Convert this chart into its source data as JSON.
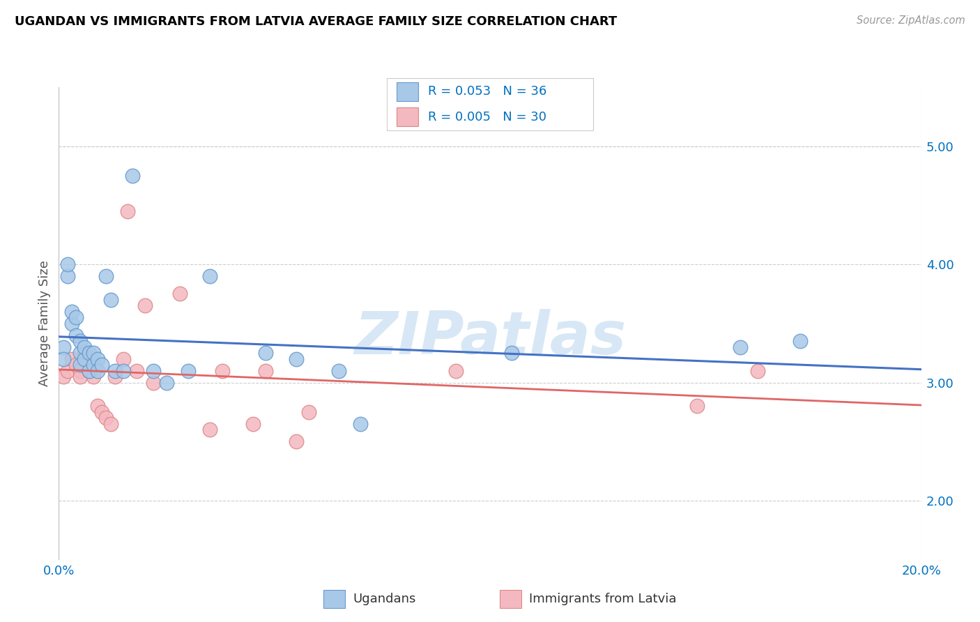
{
  "title": "UGANDAN VS IMMIGRANTS FROM LATVIA AVERAGE FAMILY SIZE CORRELATION CHART",
  "source": "Source: ZipAtlas.com",
  "ylabel": "Average Family Size",
  "xlim": [
    0.0,
    0.2
  ],
  "ylim": [
    1.5,
    5.5
  ],
  "yticks": [
    2.0,
    3.0,
    4.0,
    5.0
  ],
  "xticks": [
    0.0,
    0.05,
    0.1,
    0.15,
    0.2
  ],
  "xticklabels": [
    "0.0%",
    "",
    "",
    "",
    "20.0%"
  ],
  "watermark": "ZIPatlas",
  "legend_r1": "0.053",
  "legend_n1": "36",
  "legend_r2": "0.005",
  "legend_n2": "30",
  "legend_label1": "Ugandans",
  "legend_label2": "Immigrants from Latvia",
  "blue_fill": "#a8c8e8",
  "pink_fill": "#f4b8c0",
  "blue_edge": "#6699cc",
  "pink_edge": "#dd8888",
  "blue_line_color": "#4472c4",
  "pink_line_color": "#e06666",
  "title_color": "#000000",
  "source_color": "#999999",
  "axis_color": "#0070c0",
  "grid_color": "#cccccc",
  "background_color": "#ffffff",
  "ugandan_x": [
    0.001,
    0.001,
    0.002,
    0.002,
    0.003,
    0.003,
    0.004,
    0.004,
    0.005,
    0.005,
    0.005,
    0.006,
    0.006,
    0.007,
    0.007,
    0.008,
    0.008,
    0.009,
    0.009,
    0.01,
    0.011,
    0.012,
    0.013,
    0.015,
    0.017,
    0.022,
    0.025,
    0.03,
    0.035,
    0.048,
    0.055,
    0.065,
    0.07,
    0.105,
    0.158,
    0.172
  ],
  "ugandan_y": [
    3.3,
    3.2,
    3.9,
    4.0,
    3.5,
    3.6,
    3.4,
    3.55,
    3.25,
    3.35,
    3.15,
    3.2,
    3.3,
    3.1,
    3.25,
    3.15,
    3.25,
    3.2,
    3.1,
    3.15,
    3.9,
    3.7,
    3.1,
    3.1,
    4.75,
    3.1,
    3.0,
    3.1,
    3.9,
    3.25,
    3.2,
    3.1,
    2.65,
    3.25,
    3.3,
    3.35
  ],
  "latvian_x": [
    0.001,
    0.002,
    0.003,
    0.004,
    0.005,
    0.005,
    0.006,
    0.007,
    0.007,
    0.008,
    0.009,
    0.01,
    0.011,
    0.012,
    0.013,
    0.015,
    0.016,
    0.018,
    0.02,
    0.022,
    0.028,
    0.035,
    0.038,
    0.045,
    0.048,
    0.055,
    0.058,
    0.092,
    0.148,
    0.162
  ],
  "latvian_y": [
    3.05,
    3.1,
    3.2,
    3.15,
    3.1,
    3.05,
    3.25,
    3.1,
    3.1,
    3.05,
    2.8,
    2.75,
    2.7,
    2.65,
    3.05,
    3.2,
    4.45,
    3.1,
    3.65,
    3.0,
    3.75,
    2.6,
    3.1,
    2.65,
    3.1,
    2.5,
    2.75,
    3.1,
    2.8,
    3.1
  ]
}
